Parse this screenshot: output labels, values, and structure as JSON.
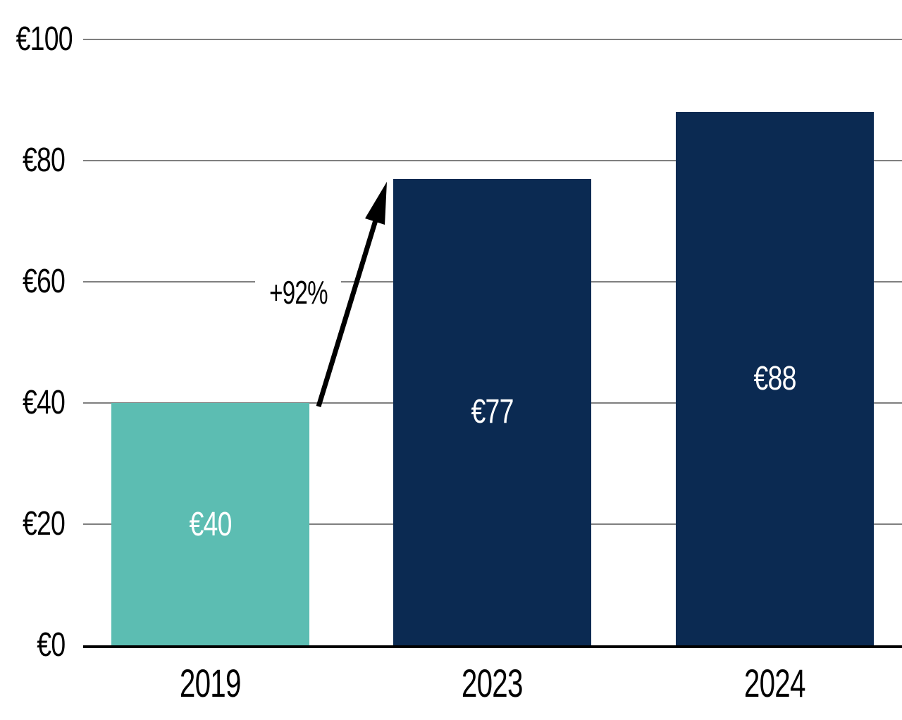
{
  "chart_data": {
    "type": "bar",
    "title": "",
    "xlabel": "",
    "ylabel": "",
    "categories": [
      "2019",
      "2023",
      "2024"
    ],
    "values": [
      40,
      77,
      88
    ],
    "bar_labels": [
      "€40",
      "€77",
      "€88"
    ],
    "bar_colors": [
      "#5CBDB2",
      "#0B2A52",
      "#0B2A52"
    ],
    "ylim": [
      0,
      100
    ],
    "yticks": [
      0,
      20,
      40,
      60,
      80,
      100
    ],
    "ytick_labels": [
      "€0",
      "€20",
      "€40",
      "€60",
      "€80",
      "€100"
    ],
    "grid": "horizontal",
    "legend": "none",
    "annotation": {
      "text": "+92%",
      "from_category": "2019",
      "to_category": "2023"
    },
    "colors": {
      "teal_bar": "#5CBDB2",
      "navy_bar": "#0B2A52",
      "gridline": "#7F7F7F",
      "axis": "#000000",
      "bar_label_text": "#FFFFFF",
      "tick_text": "#000000",
      "arrow": "#000000"
    }
  }
}
